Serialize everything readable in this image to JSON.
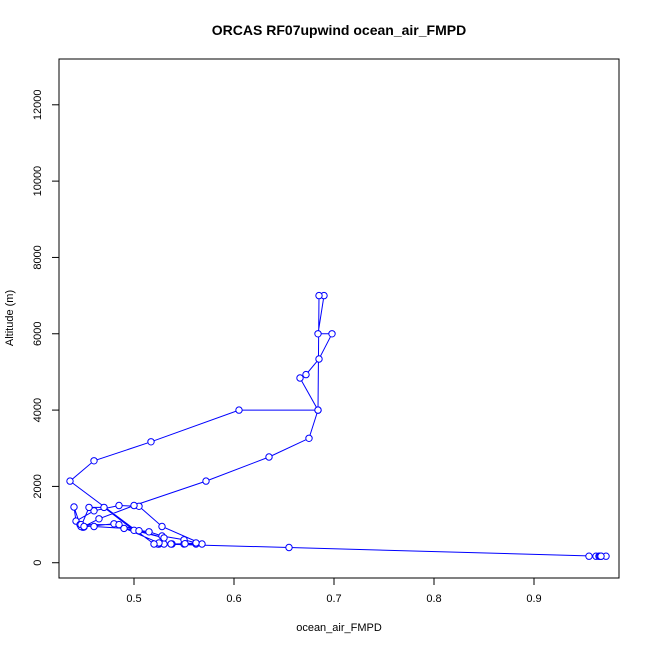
{
  "chart_data": {
    "type": "line",
    "title": "ORCAS RF07upwind ocean_air_FMPD",
    "xlabel": "ocean_air_FMPD",
    "ylabel": "Altitude (m)",
    "xlim": [
      0.425,
      0.985
    ],
    "ylim": [
      -400,
      13200
    ],
    "xticks": [
      0.5,
      0.6,
      0.7,
      0.8,
      0.9
    ],
    "xtick_labels": [
      "0.5",
      "0.6",
      "0.7",
      "0.8",
      "0.9"
    ],
    "yticks": [
      0,
      2000,
      4000,
      6000,
      8000,
      10000,
      12000
    ],
    "ytick_labels": [
      "0",
      "2000",
      "4000",
      "6000",
      "8000",
      "10000",
      "12000"
    ],
    "grid": false,
    "series": [
      {
        "color": "#0000ff",
        "marker": "open-circle",
        "x": [
          0.955,
          0.962,
          0.965,
          0.966,
          0.967,
          0.972,
          0.967,
          0.655,
          0.525,
          0.524,
          0.53,
          0.538,
          0.55,
          0.562,
          0.568,
          0.528,
          0.505,
          0.485,
          0.46,
          0.442,
          0.44,
          0.446,
          0.46,
          0.49,
          0.515,
          0.528,
          0.55,
          0.562,
          0.551,
          0.537,
          0.525,
          0.48,
          0.45,
          0.449,
          0.447,
          0.455,
          0.47,
          0.5,
          0.53,
          0.505,
          0.485,
          0.447,
          0.45,
          0.465,
          0.5,
          0.572,
          0.635,
          0.675,
          0.684,
          0.666,
          0.672,
          0.685,
          0.698,
          0.684,
          0.69,
          0.685,
          0.684,
          0.605,
          0.517,
          0.46,
          0.436,
          0.52
        ],
        "y": [
          170,
          170,
          170,
          170,
          170,
          170,
          170,
          400,
          490,
          490,
          490,
          490,
          490,
          490,
          490,
          950,
          1480,
          1500,
          1360,
          1090,
          1460,
          1000,
          950,
          900,
          810,
          700,
          600,
          520,
          500,
          490,
          520,
          1020,
          940,
          930,
          950,
          1450,
          1450,
          850,
          650,
          840,
          1000,
          1000,
          950,
          1150,
          1500,
          2140,
          2770,
          3260,
          4000,
          4840,
          4930,
          5340,
          6000,
          6000,
          7000,
          7000,
          4000,
          4000,
          3170,
          2670,
          2140,
          490
        ]
      }
    ]
  }
}
